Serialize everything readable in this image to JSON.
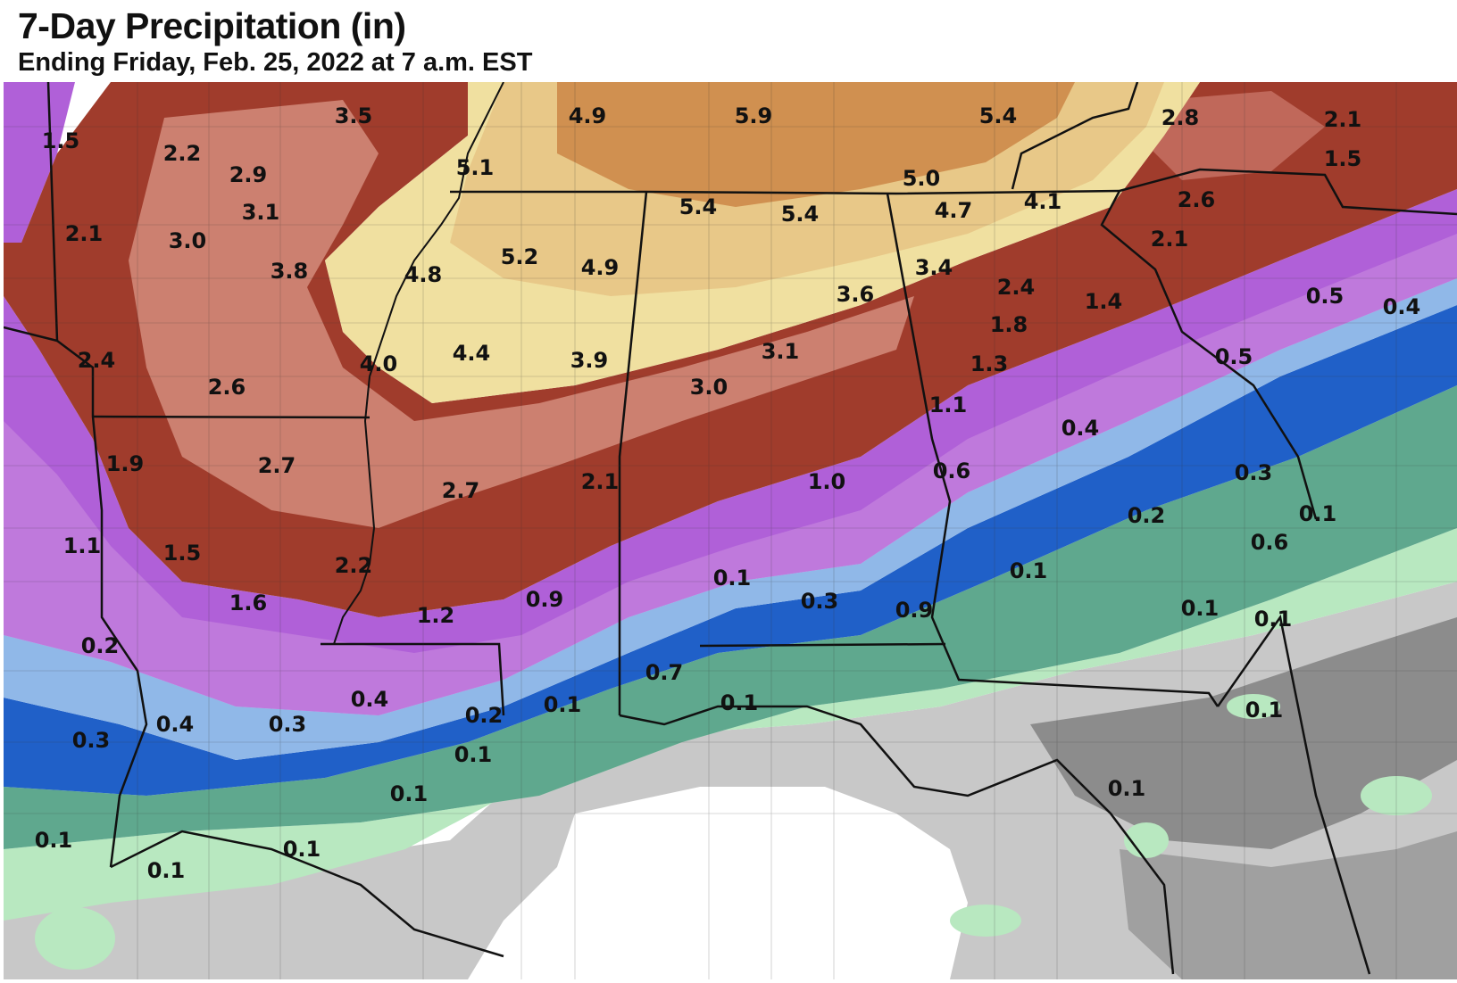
{
  "header": {
    "title": "7-Day Precipitation (in)",
    "subtitle": "Ending Friday, Feb. 25, 2022 at 7 a.m. EST"
  },
  "colors": {
    "trace": "#ffffff",
    "light_gray": "#c8c8c8",
    "dark_gray": "#8c8c8c",
    "light_green": "#b8e8c0",
    "teal_green": "#5fa88e",
    "dark_teal": "#2f7a70",
    "blue": "#2060c8",
    "light_blue": "#90b8e8",
    "purple": "#b060d8",
    "light_purple": "#d8a0e8",
    "dark_red": "#a03c2c",
    "salmon": "#cc8070",
    "tan": "#e8c888",
    "light_tan": "#f0e0a0",
    "brown_orange": "#d09050"
  },
  "labels": [
    "1.5",
    "3.5",
    "4.9",
    "5.9",
    "5.4",
    "2.8",
    "2.1",
    "2.2",
    "2.9",
    "5.1",
    "5.0",
    "1.5",
    "3.1",
    "2.1",
    "3.0",
    "5.4",
    "5.4",
    "4.7",
    "4.1",
    "2.6",
    "2.1",
    "3.8",
    "4.8",
    "5.2",
    "4.9",
    "3.4",
    "2.4",
    "3.6",
    "1.4",
    "0.5",
    "0.4",
    "1.8",
    "2.4",
    "4.0",
    "4.4",
    "3.9",
    "3.1",
    "1.3",
    "0.5",
    "2.6",
    "3.0",
    "1.1",
    "0.4",
    "1.9",
    "2.7",
    "2.7",
    "2.1",
    "1.0",
    "0.6",
    "0.3",
    "0.2",
    "0.1",
    "1.1",
    "1.5",
    "2.2",
    "0.1",
    "0.6",
    "0.1",
    "1.6",
    "0.9",
    "1.2",
    "0.3",
    "0.1",
    "0.9",
    "0.2",
    "0.7",
    "0.4",
    "0.4",
    "0.3",
    "0.3",
    "0.2",
    "0.1",
    "0.1",
    "0.1",
    "0.1",
    "0.1",
    "0.1",
    "0.1",
    "0.1",
    "0.1",
    "0.1"
  ]
}
